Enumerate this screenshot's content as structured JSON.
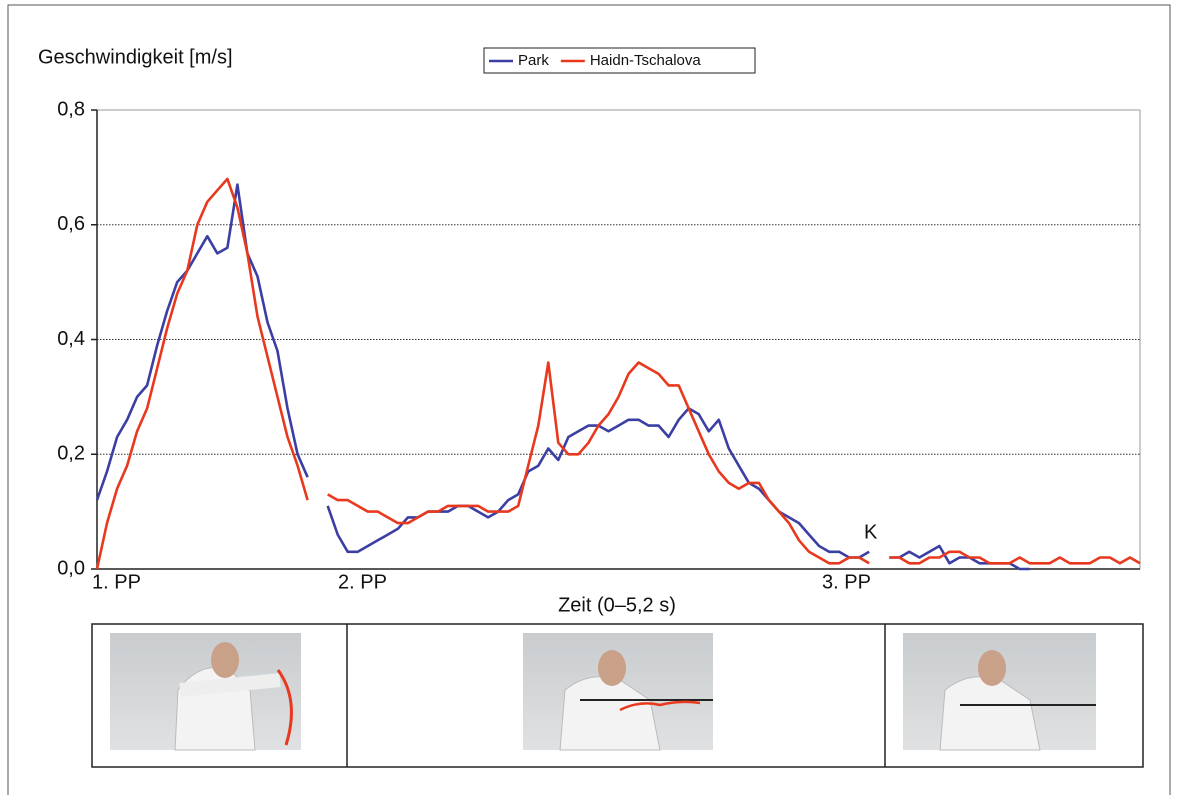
{
  "chart_data": {
    "type": "line",
    "title": "Geschwindigkeit [m/s]",
    "x_label": "Zeit (0–5,2 s)",
    "phase_labels": [
      "1. PP",
      "2. PP",
      "3. PP"
    ],
    "annotations": [
      "K"
    ],
    "x": [
      0,
      0.05,
      0.1,
      0.15,
      0.2,
      0.25,
      0.3,
      0.35,
      0.4,
      0.45,
      0.5,
      0.55,
      0.6,
      0.65,
      0.7,
      0.75,
      0.8,
      0.85,
      0.9,
      0.95,
      1,
      1.05,
      1.1,
      1.15,
      1.2,
      1.25,
      1.3,
      1.35,
      1.4,
      1.45,
      1.5,
      1.55,
      1.6,
      1.65,
      1.7,
      1.75,
      1.8,
      1.85,
      1.9,
      1.95,
      2,
      2.05,
      2.1,
      2.15,
      2.2,
      2.25,
      2.3,
      2.35,
      2.4,
      2.45,
      2.5,
      2.55,
      2.6,
      2.65,
      2.7,
      2.75,
      2.8,
      2.85,
      2.9,
      2.95,
      3,
      3.05,
      3.1,
      3.15,
      3.2,
      3.25,
      3.3,
      3.35,
      3.4,
      3.45,
      3.5,
      3.55,
      3.6,
      3.65,
      3.7,
      3.75,
      3.8,
      3.85,
      3.9,
      3.95,
      4,
      4.05,
      4.1,
      4.15,
      4.2,
      4.25,
      4.3,
      4.35,
      4.4,
      4.45,
      4.5,
      4.55,
      4.6,
      4.65,
      4.7,
      4.75,
      4.8,
      4.85,
      4.9,
      4.95,
      5,
      5.05,
      5.1,
      5.15,
      5.2
    ],
    "series": [
      {
        "name": "Park",
        "color": "#3b3fa3",
        "values": [
          0.12,
          0.17,
          0.23,
          0.26,
          0.3,
          0.32,
          0.39,
          0.45,
          0.5,
          0.52,
          0.55,
          0.58,
          0.55,
          0.56,
          0.67,
          0.55,
          0.51,
          0.43,
          0.38,
          0.28,
          0.2,
          0.16,
          null,
          0.11,
          0.06,
          0.03,
          0.03,
          0.04,
          0.05,
          0.06,
          0.07,
          0.09,
          0.09,
          0.1,
          0.1,
          0.1,
          0.11,
          0.11,
          0.1,
          0.09,
          0.1,
          0.12,
          0.13,
          0.17,
          0.18,
          0.21,
          0.19,
          0.23,
          0.24,
          0.25,
          0.25,
          0.24,
          0.25,
          0.26,
          0.26,
          0.25,
          0.25,
          0.23,
          0.26,
          0.28,
          0.27,
          0.24,
          0.26,
          0.21,
          0.18,
          0.15,
          0.14,
          0.12,
          0.1,
          0.09,
          0.08,
          0.06,
          0.04,
          0.03,
          0.03,
          0.02,
          0.02,
          0.03,
          null,
          0.02,
          0.02,
          0.03,
          0.02,
          0.03,
          0.04,
          0.01,
          0.02,
          0.02,
          0.01,
          0.01,
          0.01,
          0.01,
          0,
          0,
          null,
          null,
          null,
          null,
          null,
          null,
          null,
          null,
          null,
          null,
          null
        ]
      },
      {
        "name": "Haidn-Tschalova",
        "color": "#e8381e",
        "values": [
          0,
          0.08,
          0.14,
          0.18,
          0.24,
          0.28,
          0.35,
          0.42,
          0.48,
          0.52,
          0.6,
          0.64,
          0.66,
          0.68,
          0.63,
          0.55,
          0.44,
          0.37,
          0.3,
          0.23,
          0.18,
          0.12,
          null,
          0.13,
          0.12,
          0.12,
          0.11,
          0.1,
          0.1,
          0.09,
          0.08,
          0.08,
          0.09,
          0.1,
          0.1,
          0.11,
          0.11,
          0.11,
          0.11,
          0.1,
          0.1,
          0.1,
          0.11,
          0.18,
          0.25,
          0.36,
          0.22,
          0.2,
          0.2,
          0.22,
          0.25,
          0.27,
          0.3,
          0.34,
          0.36,
          0.35,
          0.34,
          0.32,
          0.32,
          0.28,
          0.24,
          0.2,
          0.17,
          0.15,
          0.14,
          0.15,
          0.15,
          0.12,
          0.1,
          0.08,
          0.05,
          0.03,
          0.02,
          0.01,
          0.01,
          0.02,
          0.02,
          0.01,
          null,
          0.02,
          0.02,
          0.01,
          0.01,
          0.02,
          0.02,
          0.03,
          0.03,
          0.02,
          0.02,
          0.01,
          0.01,
          0.01,
          0.02,
          0.01,
          0.01,
          0.01,
          0.02,
          0.01,
          0.01,
          0.01,
          0.02,
          0.02,
          0.01,
          0.02,
          0.01
        ]
      }
    ],
    "xlim": [
      0,
      5.2
    ],
    "ylim": [
      0,
      0.8
    ],
    "yticks": [
      {
        "value": 0,
        "label": "0,0"
      },
      {
        "value": 0.2,
        "label": "0,2"
      },
      {
        "value": 0.4,
        "label": "0,4"
      },
      {
        "value": 0.6,
        "label": "0,6"
      },
      {
        "value": 0.8,
        "label": "0,8"
      }
    ],
    "grid": true,
    "legend": "top"
  }
}
